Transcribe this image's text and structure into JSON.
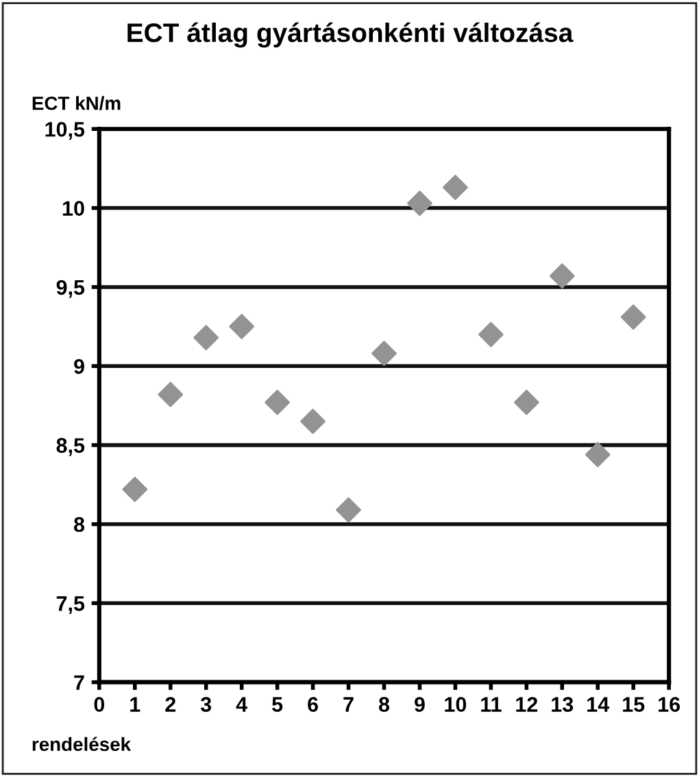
{
  "chart_data": {
    "type": "scatter",
    "title": "ECT átlag gyártásonkénti változása",
    "ylabel": "ECT kN/m",
    "xlabel": "rendelések",
    "x": [
      1,
      2,
      3,
      4,
      5,
      6,
      7,
      8,
      9,
      10,
      11,
      12,
      13,
      14,
      15
    ],
    "series": [
      {
        "color": "#939393",
        "values": [
          8.22,
          8.82,
          9.18,
          9.25,
          8.77,
          8.65,
          8.09,
          9.08,
          10.03,
          10.13,
          9.2,
          8.77,
          9.57,
          8.44,
          9.31
        ]
      }
    ],
    "xlim": [
      0,
      16
    ],
    "xticks": [
      0,
      1,
      2,
      3,
      4,
      5,
      6,
      7,
      8,
      9,
      10,
      11,
      12,
      13,
      14,
      15,
      16
    ],
    "ylim": [
      7,
      10.5
    ],
    "yticks": [
      {
        "value": 7,
        "label": "7"
      },
      {
        "value": 7.5,
        "label": "7,5"
      },
      {
        "value": 8,
        "label": "8"
      },
      {
        "value": 8.5,
        "label": "8,5"
      },
      {
        "value": 9,
        "label": "9"
      },
      {
        "value": 9.5,
        "label": "9,5"
      },
      {
        "value": 10,
        "label": "10"
      },
      {
        "value": 10.5,
        "label": "10,5"
      }
    ],
    "grid": "y",
    "marker": "diamond",
    "legend": false
  }
}
